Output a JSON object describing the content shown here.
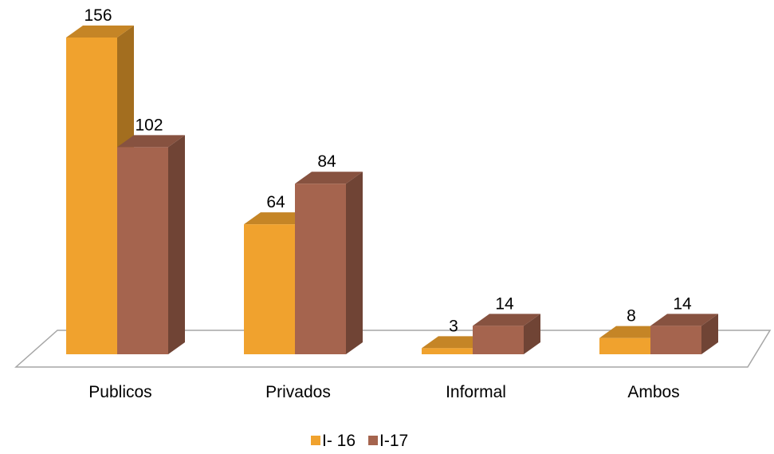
{
  "chart_data": {
    "type": "bar",
    "categories": [
      "Publicos",
      "Privados",
      "Informal",
      "Ambos"
    ],
    "series": [
      {
        "name": "I- 16",
        "values": [
          156,
          64,
          3,
          8
        ],
        "color": "#F0A22E"
      },
      {
        "name": "I-17",
        "values": [
          102,
          84,
          14,
          14
        ],
        "color": "#A5644E"
      }
    ],
    "ylim": [
      0,
      160
    ],
    "grid": false,
    "legend": "bottom",
    "three_d": true
  }
}
